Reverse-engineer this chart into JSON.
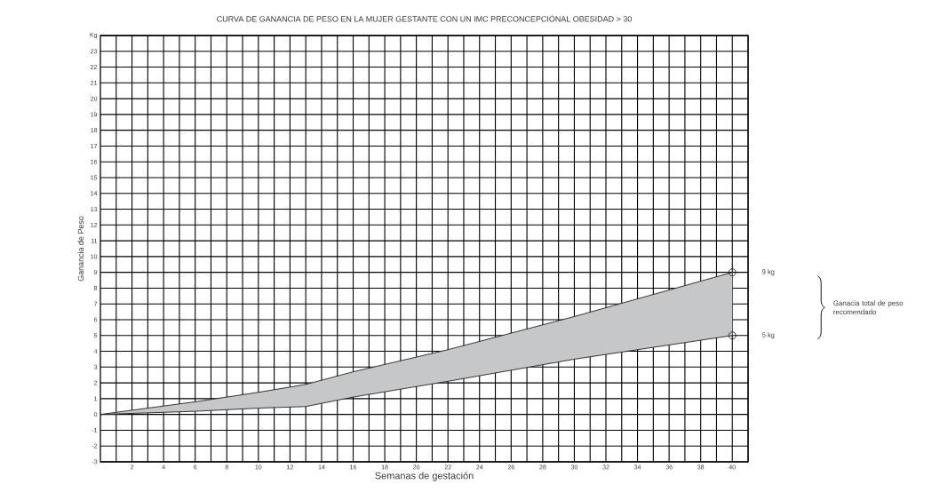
{
  "chart_data": {
    "type": "line",
    "title": "CURVA DE GANANCIA DE PESO EN LA MUJER GESTANTE CON UN  IMC  PRECONCEPCIÓNAL OBESIDAD  > 30",
    "xlabel": "Semanas de gestación",
    "ylabel": "Ganancia de Peso",
    "series": [
      {
        "color": "#231f20",
        "x": [
          0,
          6,
          10,
          13,
          16,
          22,
          30,
          40
        ],
        "values": [
          0,
          0.8,
          1.4,
          1.9,
          2.7,
          4.1,
          6.2,
          9
        ],
        "lower": [
          0,
          0.2,
          0.4,
          0.5,
          1.1,
          2.1,
          3.5,
          5
        ],
        "upper": [
          0,
          0.8,
          1.4,
          1.9,
          2.7,
          4.1,
          6.2,
          9
        ]
      },
      {
        "color": "#231f20",
        "x": [
          0,
          6,
          10,
          13,
          16,
          22,
          30,
          40
        ],
        "values": [
          0,
          0.2,
          0.4,
          0.5,
          1.1,
          2.1,
          3.5,
          5
        ]
      },
      {
        "type": "scatter",
        "color": "#231f20",
        "marker": "circle",
        "x": [
          40,
          40
        ],
        "values": [
          9,
          5
        ]
      }
    ],
    "annotations": [
      "9 kg",
      "5 kg",
      "Ganacia total de peso recomendado"
    ],
    "xlim": [
      0,
      41
    ],
    "ylim": [
      -3,
      24
    ],
    "xticks": [
      {
        "value": 1,
        "label": null
      },
      2,
      {
        "value": 3,
        "label": null
      },
      4,
      {
        "value": 5,
        "label": null
      },
      6,
      {
        "value": 7,
        "label": null
      },
      8,
      {
        "value": 9,
        "label": null
      },
      10,
      {
        "value": 11,
        "label": null
      },
      12,
      {
        "value": 13,
        "label": null
      },
      14,
      {
        "value": 15,
        "label": null
      },
      16,
      {
        "value": 17,
        "label": null
      },
      18,
      {
        "value": 19,
        "label": null
      },
      20,
      {
        "value": 21,
        "label": null
      },
      22,
      {
        "value": 23,
        "label": null
      },
      24,
      {
        "value": 25,
        "label": null
      },
      26,
      {
        "value": 27,
        "label": null
      },
      28,
      {
        "value": 29,
        "label": null
      },
      30,
      {
        "value": 31,
        "label": null
      },
      32,
      {
        "value": 33,
        "label": null
      },
      34,
      {
        "value": 35,
        "label": null
      },
      36,
      {
        "value": 37,
        "label": null
      },
      38,
      {
        "value": 39,
        "label": null
      },
      40,
      {
        "value": 41,
        "label": null
      }
    ],
    "yticks": [
      -3,
      -2,
      -1,
      0,
      1,
      2,
      3,
      4,
      5,
      6,
      7,
      8,
      9,
      10,
      11,
      12,
      13,
      14,
      15,
      16,
      17,
      18,
      19,
      20,
      21,
      22,
      23,
      {
        "value": 24,
        "label": "Kg"
      }
    ],
    "grid": true
  }
}
